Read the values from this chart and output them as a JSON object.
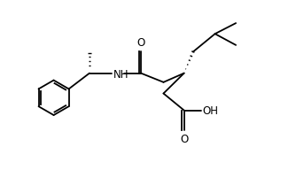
{
  "bg_color": "#ffffff",
  "line_color": "#000000",
  "line_width": 1.3,
  "font_size": 8.5,
  "figsize": [
    3.34,
    1.92
  ],
  "dpi": 100,
  "xlim": [
    0,
    10
  ],
  "ylim": [
    0,
    6
  ]
}
